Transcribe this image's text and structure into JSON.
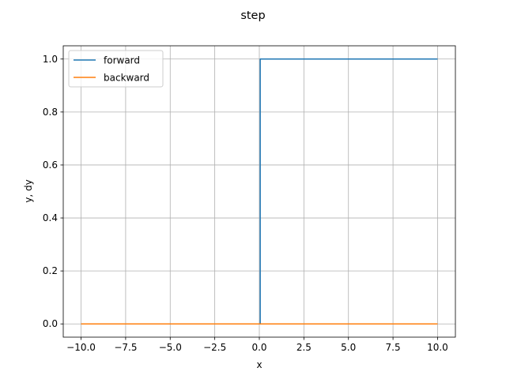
{
  "chart_data": {
    "type": "line",
    "title": "step",
    "xlabel": "x",
    "ylabel": "y, dy",
    "xlim": [
      -11.0,
      11.0
    ],
    "ylim": [
      -0.05,
      1.05
    ],
    "xticks": [
      -10.0,
      -7.5,
      -5.0,
      -2.5,
      0.0,
      2.5,
      5.0,
      7.5,
      10.0
    ],
    "xtick_labels": [
      "−10.0",
      "−7.5",
      "−5.0",
      "−2.5",
      "0.0",
      "2.5",
      "5.0",
      "7.5",
      "10.0"
    ],
    "yticks": [
      0.0,
      0.2,
      0.4,
      0.6,
      0.8,
      1.0
    ],
    "ytick_labels": [
      "0.0",
      "0.2",
      "0.4",
      "0.6",
      "0.8",
      "1.0"
    ],
    "grid": true,
    "legend_position": "upper-left",
    "series": [
      {
        "name": "forward",
        "color": "#1f77b4",
        "x": [
          -10.0,
          -0.05,
          -0.05,
          0.05,
          0.05,
          10.0
        ],
        "y": [
          0.0,
          0.0,
          0.0,
          0.0,
          1.0,
          1.0
        ]
      },
      {
        "name": "backward",
        "color": "#ff7f0e",
        "x": [
          -10.0,
          0.0,
          10.0
        ],
        "y": [
          0.0,
          0.0,
          0.0
        ]
      }
    ]
  }
}
